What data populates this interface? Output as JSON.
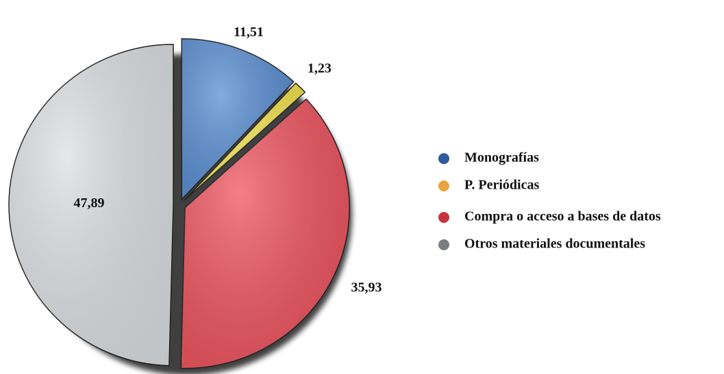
{
  "chart_data": {
    "type": "pie",
    "categories": [
      "Monografías",
      "P. Periódicas",
      "Compra o acceso a bases de datos",
      "Otros materiales documentales"
    ],
    "values": [
      11.51,
      1.23,
      35.93,
      47.89
    ],
    "value_labels": [
      "11,51",
      "1,23",
      "35,93",
      "47,89"
    ],
    "colors": [
      "#5b8fd2",
      "#f3e34d",
      "#ee5560",
      "#dde0e3"
    ],
    "legend_colors": [
      "#2f5b9d",
      "#eaa23d",
      "#c7343c",
      "#7a7d80"
    ]
  }
}
